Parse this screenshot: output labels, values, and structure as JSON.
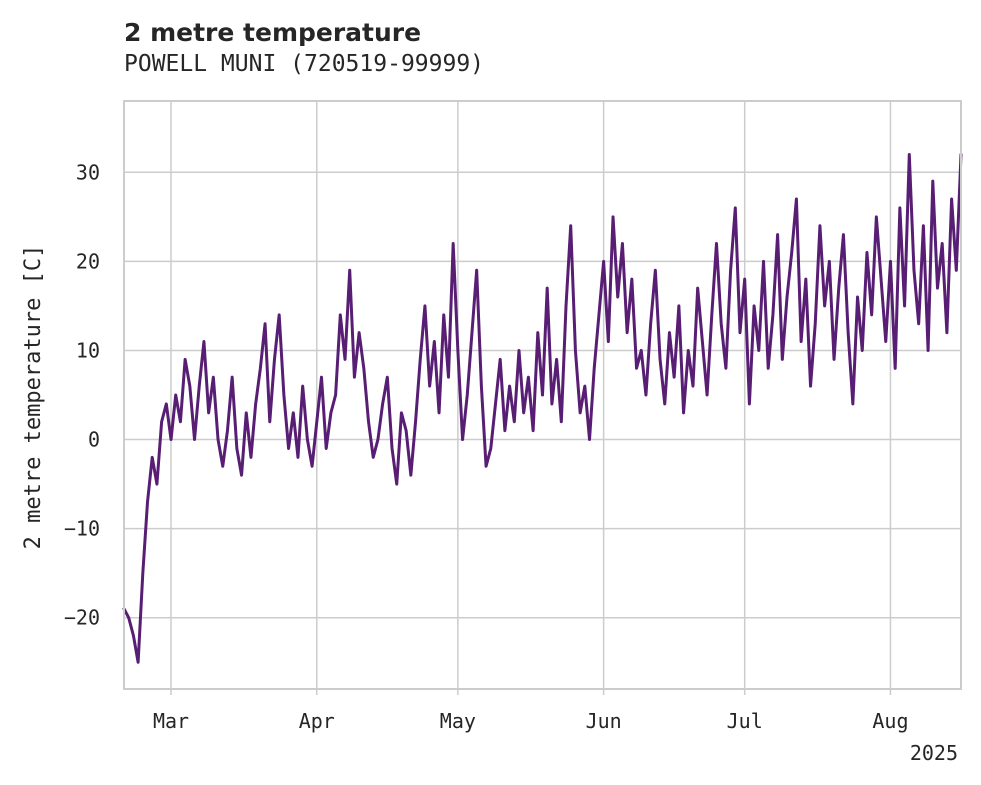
{
  "title": "2 metre temperature",
  "subtitle": "POWELL MUNI (720519-99999)",
  "colors": {
    "line": "#581e73",
    "grid": "#cccccc",
    "frame": "#cccccc",
    "text": "#262626"
  },
  "chart_data": {
    "type": "line",
    "title": "2 metre temperature",
    "subtitle": "POWELL MUNI (720519-99999)",
    "xlabel": "",
    "ylabel": "2 metre temperature [C]",
    "year_label": "2025",
    "x_tick_labels": [
      "Mar",
      "Apr",
      "May",
      "Jun",
      "Jul",
      "Aug"
    ],
    "x_tick_dates": [
      "2025-03-01",
      "2025-04-01",
      "2025-05-01",
      "2025-06-01",
      "2025-07-01",
      "2025-08-01"
    ],
    "xlim": [
      "2025-02-19",
      "2025-08-16"
    ],
    "y_ticks": [
      -20,
      -10,
      0,
      10,
      20,
      30
    ],
    "ylim": [
      -28,
      38
    ],
    "grid": true,
    "legend": "none",
    "series": [
      {
        "values": [
          [
            "2025-02-19",
            -19
          ],
          [
            "2025-02-20",
            -20
          ],
          [
            "2025-02-21",
            -22
          ],
          [
            "2025-02-22",
            -25
          ],
          [
            "2025-02-23",
            -15
          ],
          [
            "2025-02-24",
            -7
          ],
          [
            "2025-02-25",
            -2
          ],
          [
            "2025-02-26",
            -5
          ],
          [
            "2025-02-27",
            2
          ],
          [
            "2025-02-28",
            4
          ],
          [
            "2025-03-01",
            0
          ],
          [
            "2025-03-02",
            5
          ],
          [
            "2025-03-03",
            2
          ],
          [
            "2025-03-04",
            9
          ],
          [
            "2025-03-05",
            6
          ],
          [
            "2025-03-06",
            0
          ],
          [
            "2025-03-07",
            6
          ],
          [
            "2025-03-08",
            11
          ],
          [
            "2025-03-09",
            3
          ],
          [
            "2025-03-10",
            7
          ],
          [
            "2025-03-11",
            0
          ],
          [
            "2025-03-12",
            -3
          ],
          [
            "2025-03-13",
            1
          ],
          [
            "2025-03-14",
            7
          ],
          [
            "2025-03-15",
            -1
          ],
          [
            "2025-03-16",
            -4
          ],
          [
            "2025-03-17",
            3
          ],
          [
            "2025-03-18",
            -2
          ],
          [
            "2025-03-19",
            4
          ],
          [
            "2025-03-20",
            8
          ],
          [
            "2025-03-21",
            13
          ],
          [
            "2025-03-22",
            2
          ],
          [
            "2025-03-23",
            9
          ],
          [
            "2025-03-24",
            14
          ],
          [
            "2025-03-25",
            5
          ],
          [
            "2025-03-26",
            -1
          ],
          [
            "2025-03-27",
            3
          ],
          [
            "2025-03-28",
            -2
          ],
          [
            "2025-03-29",
            6
          ],
          [
            "2025-03-30",
            0
          ],
          [
            "2025-03-31",
            -3
          ],
          [
            "2025-04-01",
            2
          ],
          [
            "2025-04-02",
            7
          ],
          [
            "2025-04-03",
            -1
          ],
          [
            "2025-04-04",
            3
          ],
          [
            "2025-04-05",
            5
          ],
          [
            "2025-04-06",
            14
          ],
          [
            "2025-04-07",
            9
          ],
          [
            "2025-04-08",
            19
          ],
          [
            "2025-04-09",
            7
          ],
          [
            "2025-04-10",
            12
          ],
          [
            "2025-04-11",
            8
          ],
          [
            "2025-04-12",
            2
          ],
          [
            "2025-04-13",
            -2
          ],
          [
            "2025-04-14",
            0
          ],
          [
            "2025-04-15",
            4
          ],
          [
            "2025-04-16",
            7
          ],
          [
            "2025-04-17",
            -1
          ],
          [
            "2025-04-18",
            -5
          ],
          [
            "2025-04-19",
            3
          ],
          [
            "2025-04-20",
            1
          ],
          [
            "2025-04-21",
            -4
          ],
          [
            "2025-04-22",
            2
          ],
          [
            "2025-04-23",
            9
          ],
          [
            "2025-04-24",
            15
          ],
          [
            "2025-04-25",
            6
          ],
          [
            "2025-04-26",
            11
          ],
          [
            "2025-04-27",
            3
          ],
          [
            "2025-04-28",
            14
          ],
          [
            "2025-04-29",
            7
          ],
          [
            "2025-04-30",
            22
          ],
          [
            "2025-05-01",
            10
          ],
          [
            "2025-05-02",
            0
          ],
          [
            "2025-05-03",
            5
          ],
          [
            "2025-05-04",
            12
          ],
          [
            "2025-05-05",
            19
          ],
          [
            "2025-05-06",
            6
          ],
          [
            "2025-05-07",
            -3
          ],
          [
            "2025-05-08",
            -1
          ],
          [
            "2025-05-09",
            4
          ],
          [
            "2025-05-10",
            9
          ],
          [
            "2025-05-11",
            1
          ],
          [
            "2025-05-12",
            6
          ],
          [
            "2025-05-13",
            2
          ],
          [
            "2025-05-14",
            10
          ],
          [
            "2025-05-15",
            3
          ],
          [
            "2025-05-16",
            7
          ],
          [
            "2025-05-17",
            1
          ],
          [
            "2025-05-18",
            12
          ],
          [
            "2025-05-19",
            5
          ],
          [
            "2025-05-20",
            17
          ],
          [
            "2025-05-21",
            4
          ],
          [
            "2025-05-22",
            9
          ],
          [
            "2025-05-23",
            2
          ],
          [
            "2025-05-24",
            15
          ],
          [
            "2025-05-25",
            24
          ],
          [
            "2025-05-26",
            10
          ],
          [
            "2025-05-27",
            3
          ],
          [
            "2025-05-28",
            6
          ],
          [
            "2025-05-29",
            0
          ],
          [
            "2025-05-30",
            8
          ],
          [
            "2025-05-31",
            14
          ],
          [
            "2025-06-01",
            20
          ],
          [
            "2025-06-02",
            11
          ],
          [
            "2025-06-03",
            25
          ],
          [
            "2025-06-04",
            16
          ],
          [
            "2025-06-05",
            22
          ],
          [
            "2025-06-06",
            12
          ],
          [
            "2025-06-07",
            18
          ],
          [
            "2025-06-08",
            8
          ],
          [
            "2025-06-09",
            10
          ],
          [
            "2025-06-10",
            5
          ],
          [
            "2025-06-11",
            13
          ],
          [
            "2025-06-12",
            19
          ],
          [
            "2025-06-13",
            9
          ],
          [
            "2025-06-14",
            4
          ],
          [
            "2025-06-15",
            12
          ],
          [
            "2025-06-16",
            7
          ],
          [
            "2025-06-17",
            15
          ],
          [
            "2025-06-18",
            3
          ],
          [
            "2025-06-19",
            10
          ],
          [
            "2025-06-20",
            6
          ],
          [
            "2025-06-21",
            17
          ],
          [
            "2025-06-22",
            11
          ],
          [
            "2025-06-23",
            5
          ],
          [
            "2025-06-24",
            14
          ],
          [
            "2025-06-25",
            22
          ],
          [
            "2025-06-26",
            13
          ],
          [
            "2025-06-27",
            8
          ],
          [
            "2025-06-28",
            19
          ],
          [
            "2025-06-29",
            26
          ],
          [
            "2025-06-30",
            12
          ],
          [
            "2025-07-01",
            18
          ],
          [
            "2025-07-02",
            4
          ],
          [
            "2025-07-03",
            15
          ],
          [
            "2025-07-04",
            10
          ],
          [
            "2025-07-05",
            20
          ],
          [
            "2025-07-06",
            8
          ],
          [
            "2025-07-07",
            14
          ],
          [
            "2025-07-08",
            23
          ],
          [
            "2025-07-09",
            9
          ],
          [
            "2025-07-10",
            16
          ],
          [
            "2025-07-11",
            21
          ],
          [
            "2025-07-12",
            27
          ],
          [
            "2025-07-13",
            11
          ],
          [
            "2025-07-14",
            18
          ],
          [
            "2025-07-15",
            6
          ],
          [
            "2025-07-16",
            13
          ],
          [
            "2025-07-17",
            24
          ],
          [
            "2025-07-18",
            15
          ],
          [
            "2025-07-19",
            20
          ],
          [
            "2025-07-20",
            9
          ],
          [
            "2025-07-21",
            17
          ],
          [
            "2025-07-22",
            23
          ],
          [
            "2025-07-23",
            12
          ],
          [
            "2025-07-24",
            4
          ],
          [
            "2025-07-25",
            16
          ],
          [
            "2025-07-26",
            10
          ],
          [
            "2025-07-27",
            21
          ],
          [
            "2025-07-28",
            14
          ],
          [
            "2025-07-29",
            25
          ],
          [
            "2025-07-30",
            18
          ],
          [
            "2025-07-31",
            11
          ],
          [
            "2025-08-01",
            20
          ],
          [
            "2025-08-02",
            8
          ],
          [
            "2025-08-03",
            26
          ],
          [
            "2025-08-04",
            15
          ],
          [
            "2025-08-05",
            32
          ],
          [
            "2025-08-06",
            19
          ],
          [
            "2025-08-07",
            13
          ],
          [
            "2025-08-08",
            24
          ],
          [
            "2025-08-09",
            10
          ],
          [
            "2025-08-10",
            29
          ],
          [
            "2025-08-11",
            17
          ],
          [
            "2025-08-12",
            22
          ],
          [
            "2025-08-13",
            12
          ],
          [
            "2025-08-14",
            27
          ],
          [
            "2025-08-15",
            19
          ],
          [
            "2025-08-16",
            32
          ]
        ]
      }
    ]
  }
}
